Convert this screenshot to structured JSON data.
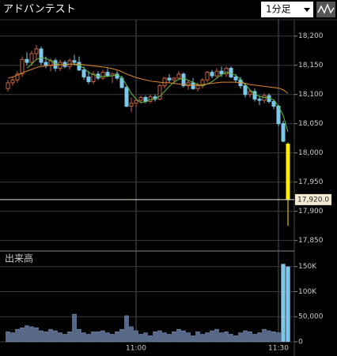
{
  "header": {
    "title": "アドバンテスト",
    "interval": "1分足"
  },
  "chart_data": [
    {
      "type": "candlestick",
      "ylim": [
        17832,
        18228
      ],
      "yticks": [
        {
          "value": 18200,
          "label": "18,200"
        },
        {
          "value": 18150,
          "label": "18,150"
        },
        {
          "value": 18100,
          "label": "18,100"
        },
        {
          "value": 18050,
          "label": "18,050"
        },
        {
          "value": 18000,
          "label": "18,000"
        },
        {
          "value": 17950,
          "label": "17,950"
        },
        {
          "value": 17900,
          "label": "17,900"
        },
        {
          "value": 17850,
          "label": "17,850"
        }
      ],
      "grid": true,
      "up_color": "#c8643c",
      "down_color": "#7cc8ea",
      "last_color": "#ffee00",
      "open": [
        18110,
        18120,
        18125,
        18135,
        18160,
        18155,
        18170,
        18178,
        18155,
        18150,
        18158,
        18145,
        18155,
        18148,
        18158,
        18155,
        18142,
        18130,
        18122,
        18135,
        18128,
        18138,
        18132,
        18135,
        18128,
        18112,
        18080,
        18085,
        18090,
        18095,
        18088,
        18096,
        18092,
        18115,
        18128,
        18125,
        18128,
        18135,
        18115,
        18120,
        18110,
        18115,
        18125,
        18138,
        18132,
        18140,
        18135,
        18145,
        18130,
        18125,
        18115,
        18100,
        18105,
        18092,
        18090,
        18098,
        18088,
        18080,
        18050,
        18015
      ],
      "high": [
        18125,
        18130,
        18140,
        18165,
        18172,
        18175,
        18185,
        18182,
        18165,
        18162,
        18162,
        18160,
        18158,
        18162,
        18168,
        18165,
        18148,
        18140,
        18140,
        18140,
        18142,
        18145,
        18138,
        18140,
        18132,
        18115,
        18095,
        18095,
        18098,
        18098,
        18100,
        18100,
        18118,
        18130,
        18135,
        18130,
        18140,
        18138,
        18125,
        18128,
        18120,
        18128,
        18140,
        18142,
        18145,
        18148,
        18148,
        18148,
        18135,
        18130,
        18120,
        18108,
        18110,
        18098,
        18102,
        18102,
        18090,
        18082,
        18055,
        18018
      ],
      "low": [
        18105,
        18115,
        18120,
        18130,
        18150,
        18150,
        18160,
        18150,
        18145,
        18140,
        18140,
        18140,
        18145,
        18142,
        18150,
        18140,
        18125,
        18118,
        18118,
        18125,
        18125,
        18130,
        18120,
        18125,
        18110,
        18078,
        18070,
        18078,
        18085,
        18085,
        18085,
        18088,
        18090,
        18110,
        18120,
        18118,
        18125,
        18112,
        18108,
        18108,
        18105,
        18110,
        18120,
        18128,
        18128,
        18130,
        18130,
        18128,
        18120,
        18110,
        18095,
        18095,
        18088,
        18082,
        18085,
        18085,
        18075,
        18045,
        18018,
        17875
      ],
      "close": [
        18120,
        18125,
        18135,
        18160,
        18155,
        18170,
        18178,
        18155,
        18150,
        18158,
        18145,
        18155,
        18148,
        18158,
        18155,
        18142,
        18130,
        18122,
        18135,
        18128,
        18138,
        18132,
        18135,
        18128,
        18112,
        18080,
        18085,
        18090,
        18095,
        18088,
        18096,
        18092,
        18115,
        18128,
        18125,
        18128,
        18135,
        18115,
        18120,
        18110,
        18115,
        18125,
        18138,
        18132,
        18140,
        18135,
        18145,
        18130,
        18125,
        18115,
        18100,
        18105,
        18092,
        18090,
        18098,
        18088,
        18080,
        18050,
        18020,
        17920
      ],
      "series": [
        {
          "color": "#5fbf3f",
          "values": [
            null,
            null,
            null,
            null,
            18145,
            18152,
            18160,
            18163,
            18162,
            18158,
            18153,
            18151,
            18151,
            18152,
            18152,
            18150,
            18145,
            18138,
            18134,
            18131,
            18131,
            18131,
            18132,
            18134,
            18129,
            18116,
            18102,
            18092,
            18086,
            18088,
            18091,
            18093,
            18097,
            18105,
            18114,
            18121,
            18126,
            18128,
            18124,
            18121,
            18117,
            18115,
            18118,
            18122,
            18128,
            18134,
            18138,
            18136,
            18133,
            18126,
            18117,
            18108,
            18101,
            18097,
            18095,
            18094,
            18091,
            18080,
            18064,
            18036
          ]
        },
        {
          "color": "#e08a2c",
          "values": [
            18128,
            18130,
            18133,
            18137,
            18140,
            18143,
            18146,
            18148,
            18149,
            18150,
            18150,
            18151,
            18151,
            18152,
            18152,
            18152,
            18151,
            18150,
            18149,
            18148,
            18147,
            18146,
            18144,
            18142,
            18139,
            18135,
            18132,
            18129,
            18127,
            18125,
            18123,
            18122,
            18121,
            18120,
            18120,
            18119,
            18118,
            18117,
            18116,
            18116,
            18116,
            18117,
            18118,
            18119,
            18120,
            18121,
            18121,
            18121,
            18121,
            18120,
            18119,
            18117,
            18116,
            18115,
            18114,
            18113,
            18112,
            18111,
            18108,
            18102
          ]
        }
      ],
      "last_price": 17920,
      "last_price_label": "17,920.0"
    },
    {
      "type": "bar",
      "title": "出来高",
      "ylim": [
        0,
        181000
      ],
      "yticks": [
        {
          "value": 150000,
          "label": "150K"
        },
        {
          "value": 100000,
          "label": "100K"
        },
        {
          "value": 50000,
          "label": "50,000"
        },
        0
      ],
      "grid": true,
      "color": "#56698a",
      "last_color": "#7cc8ea",
      "categories": [
        null,
        null,
        null,
        null,
        null,
        null,
        null,
        null,
        null,
        null,
        null,
        null,
        null,
        null,
        null,
        null,
        null,
        null,
        null,
        null,
        null,
        null,
        null,
        null,
        null,
        null,
        null,
        "11:00",
        null,
        null,
        null,
        null,
        null,
        null,
        null,
        null,
        null,
        null,
        null,
        null,
        null,
        null,
        null,
        null,
        null,
        null,
        null,
        null,
        null,
        null,
        null,
        null,
        null,
        null,
        null,
        null,
        null,
        "11:30",
        null,
        null
      ],
      "values": [
        20000,
        18000,
        25000,
        28000,
        32000,
        30000,
        28000,
        22000,
        20000,
        25000,
        22000,
        18000,
        15000,
        20000,
        55000,
        25000,
        18000,
        15000,
        20000,
        20000,
        22000,
        18000,
        15000,
        20000,
        25000,
        52000,
        30000,
        22000,
        15000,
        18000,
        12000,
        20000,
        22000,
        18000,
        15000,
        20000,
        25000,
        22000,
        18000,
        12000,
        20000,
        15000,
        18000,
        22000,
        25000,
        18000,
        20000,
        15000,
        12000,
        18000,
        22000,
        20000,
        15000,
        18000,
        25000,
        22000,
        20000,
        18000,
        155000,
        150000
      ]
    }
  ]
}
